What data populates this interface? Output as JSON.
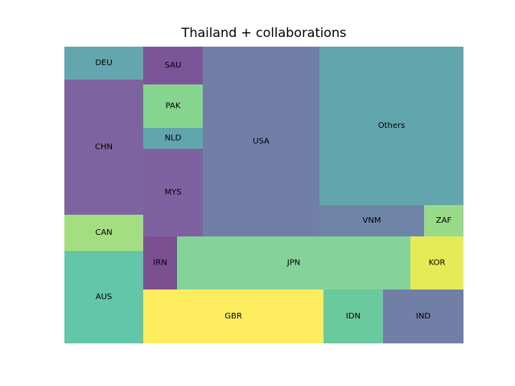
{
  "chart_data": {
    "type": "treemap",
    "title": "Thailand + collaborations",
    "cells": [
      {
        "label": "DEU",
        "color": "#3e8e98"
      },
      {
        "label": "CHN",
        "color": "#5e3c8a"
      },
      {
        "label": "CAN",
        "color": "#8cd660"
      },
      {
        "label": "AUS",
        "color": "#3cb893"
      },
      {
        "label": "SAU",
        "color": "#5b2b7f"
      },
      {
        "label": "PAK",
        "color": "#68ca72"
      },
      {
        "label": "NLD",
        "color": "#3a8f98"
      },
      {
        "label": "MYS",
        "color": "#5f3a89"
      },
      {
        "label": "USA",
        "color": "#4e5f91"
      },
      {
        "label": "Others",
        "color": "#3b8f98"
      },
      {
        "label": "VNM",
        "color": "#4b6792"
      },
      {
        "label": "ZAF",
        "color": "#80d26a"
      },
      {
        "label": "IRN",
        "color": "#5a2475"
      },
      {
        "label": "JPN",
        "color": "#66c882"
      },
      {
        "label": "KOR",
        "color": "#e0e52c"
      },
      {
        "label": "GBR",
        "color": "#fde837"
      },
      {
        "label": "IDN",
        "color": "#44bd86"
      },
      {
        "label": "IND",
        "color": "#4e5f91"
      }
    ]
  }
}
